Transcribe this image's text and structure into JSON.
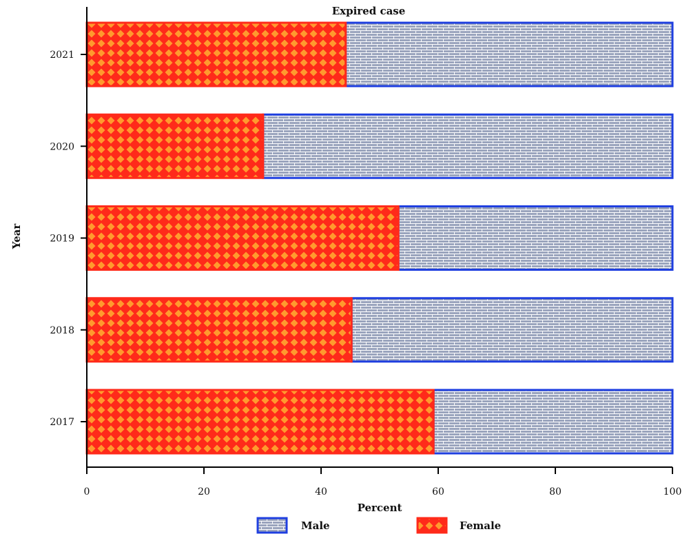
{
  "chart_data": {
    "type": "bar",
    "orientation": "horizontal",
    "stacked": true,
    "title": "Expired case",
    "xlabel": "Percent",
    "ylabel": "Year",
    "xlim": [
      0,
      100
    ],
    "xticks": [
      "0",
      "20",
      "40",
      "60",
      "80",
      "100"
    ],
    "categories": [
      "2021",
      "2020",
      "2019",
      "2018",
      "2017"
    ],
    "series": [
      {
        "name": "Female",
        "values": [
          44.2,
          30.1,
          53.2,
          45.2,
          59.2
        ]
      },
      {
        "name": "Male",
        "values": [
          55.8,
          69.9,
          46.8,
          54.8,
          40.8
        ]
      }
    ],
    "legend": {
      "position": "bottom",
      "entries": [
        "Male",
        "Female"
      ]
    },
    "grid": false
  },
  "colors": {
    "female_fill": "#ff2a1a",
    "female_pattern": "#ff9a2e",
    "male_fill": "#9aa4bd",
    "male_border": "#1f3fe0",
    "male_pattern_line": "#ffffff",
    "axis": "#000000"
  }
}
